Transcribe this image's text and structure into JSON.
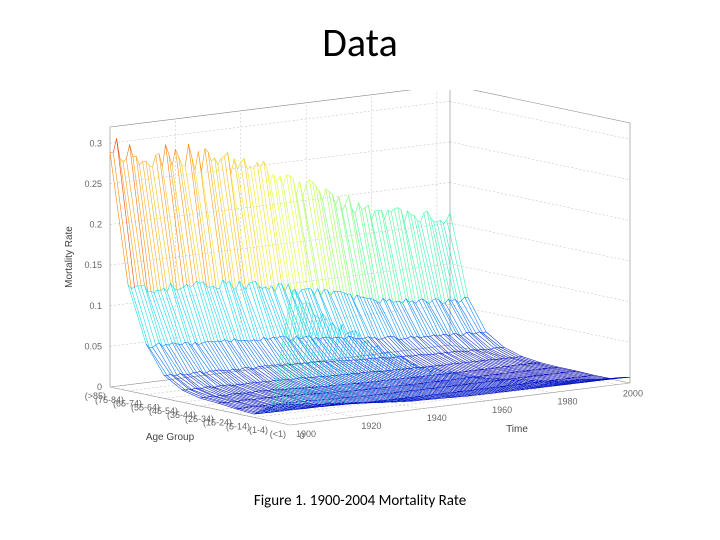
{
  "title": "Data",
  "caption": "Figure 1. 1900-2004 Mortality Rate",
  "chart": {
    "type": "3d-surface-wireframe",
    "z_axis": {
      "label": "Mortality Rate",
      "ticks": [
        0,
        0.05,
        0.1,
        0.15,
        0.2,
        0.25,
        0.3
      ],
      "lim": [
        0,
        0.32
      ]
    },
    "x_axis": {
      "label": "Age Group",
      "categories": [
        "(<1)",
        "(1-4)",
        "(5-14)",
        "(15-24)",
        "(25-34)",
        "(35-44)",
        "(45-54)",
        "(55-64)",
        "(65-74)",
        "(75-84)",
        "(>85)"
      ],
      "show_zero_tick": true
    },
    "y_axis": {
      "label": "Time",
      "lim": [
        1900,
        2004
      ],
      "ticks": [
        1900,
        1920,
        1940,
        1960,
        1980,
        2000
      ]
    },
    "series": {
      "comment": "mortality rate per age-group index (0..10) at selected years; intermediate years interpolated",
      "years_sample": [
        1900,
        1920,
        1940,
        1960,
        1980,
        2004
      ],
      "data_by_age": {
        "0": [
          0.16,
          0.1,
          0.05,
          0.027,
          0.014,
          0.007
        ],
        "1": [
          0.02,
          0.012,
          0.004,
          0.0012,
          0.0007,
          0.0003
        ],
        "2": [
          0.004,
          0.003,
          0.0012,
          0.0005,
          0.0003,
          0.0002
        ],
        "3": [
          0.006,
          0.005,
          0.002,
          0.0012,
          0.001,
          0.0008
        ],
        "4": [
          0.008,
          0.007,
          0.003,
          0.0016,
          0.0014,
          0.001
        ],
        "5": [
          0.01,
          0.009,
          0.005,
          0.003,
          0.0022,
          0.002
        ],
        "6": [
          0.015,
          0.013,
          0.011,
          0.008,
          0.006,
          0.0045
        ],
        "7": [
          0.028,
          0.025,
          0.023,
          0.018,
          0.014,
          0.011
        ],
        "8": [
          0.06,
          0.055,
          0.05,
          0.04,
          0.03,
          0.025
        ],
        "9": [
          0.125,
          0.12,
          0.11,
          0.09,
          0.07,
          0.06
        ],
        "10": [
          0.29,
          0.275,
          0.255,
          0.215,
          0.175,
          0.155
        ]
      },
      "noise_amplitude_frac": 0.06
    },
    "colors": {
      "colormap_stops": [
        [
          0.0,
          "#0000b3"
        ],
        [
          0.15,
          "#0060ff"
        ],
        [
          0.35,
          "#00d0ff"
        ],
        [
          0.55,
          "#40ff90"
        ],
        [
          0.75,
          "#f0ff20"
        ],
        [
          0.9,
          "#ff8000"
        ],
        [
          1.0,
          "#d00000"
        ]
      ],
      "background": "#ffffff",
      "grid": "#bbbbbb",
      "axis_text": "#555555",
      "cube_edge": "#888888"
    },
    "view": {
      "azimuth_deg": -37.5,
      "elevation_deg": 30,
      "line_width": 0.55
    },
    "typography": {
      "title_fontsize": 40,
      "caption_fontsize": 15,
      "axis_label_fontsize": 10,
      "tick_fontsize": 9,
      "font_family": "Arial"
    }
  }
}
